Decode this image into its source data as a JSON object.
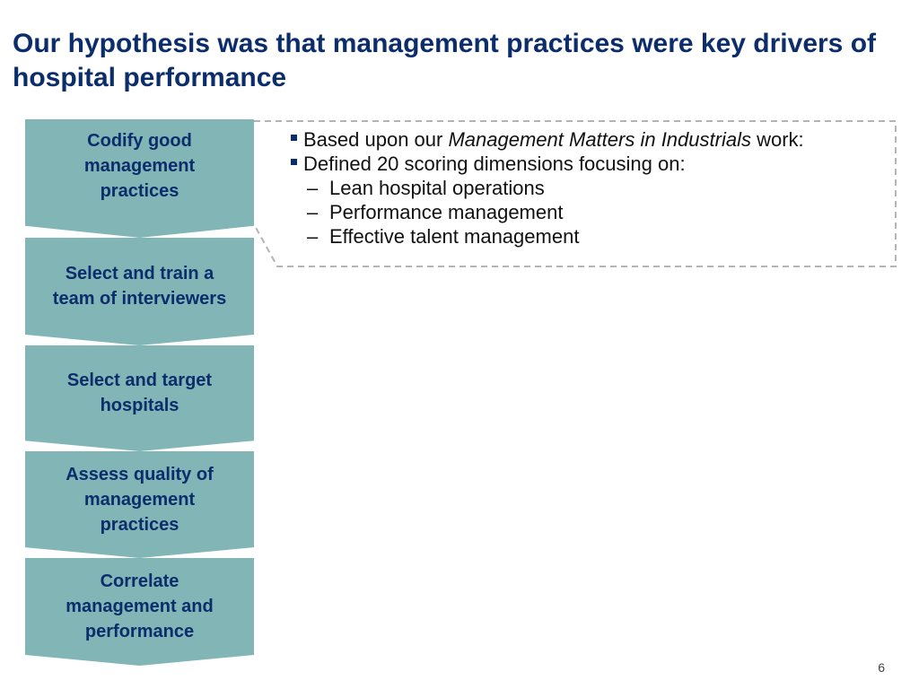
{
  "slide": {
    "title": "Our hypothesis was that management practices were key drivers of hospital performance",
    "page_number": "6"
  },
  "steps": [
    {
      "label": "Codify good management practices"
    },
    {
      "label": "Select and train a team of interviewers"
    },
    {
      "label": "Select and target hospitals"
    },
    {
      "label": "Assess quality of management practices"
    },
    {
      "label": "Correlate management and performance"
    }
  ],
  "detail": {
    "bullet1": {
      "prefix": "Based upon our ",
      "emphasis": "Management Matters in Industrials",
      "suffix": " work:"
    },
    "bullet2": "Defined 20 scoring dimensions focusing on:",
    "sub_bullets": [
      "Lean hospital operations",
      "Performance management",
      "Effective talent management"
    ],
    "dash_glyph": "–"
  },
  "colors": {
    "step_fill": "#82b5b6",
    "title_text": "#0c2d6b",
    "dashed_border": "#b4b4b4"
  }
}
